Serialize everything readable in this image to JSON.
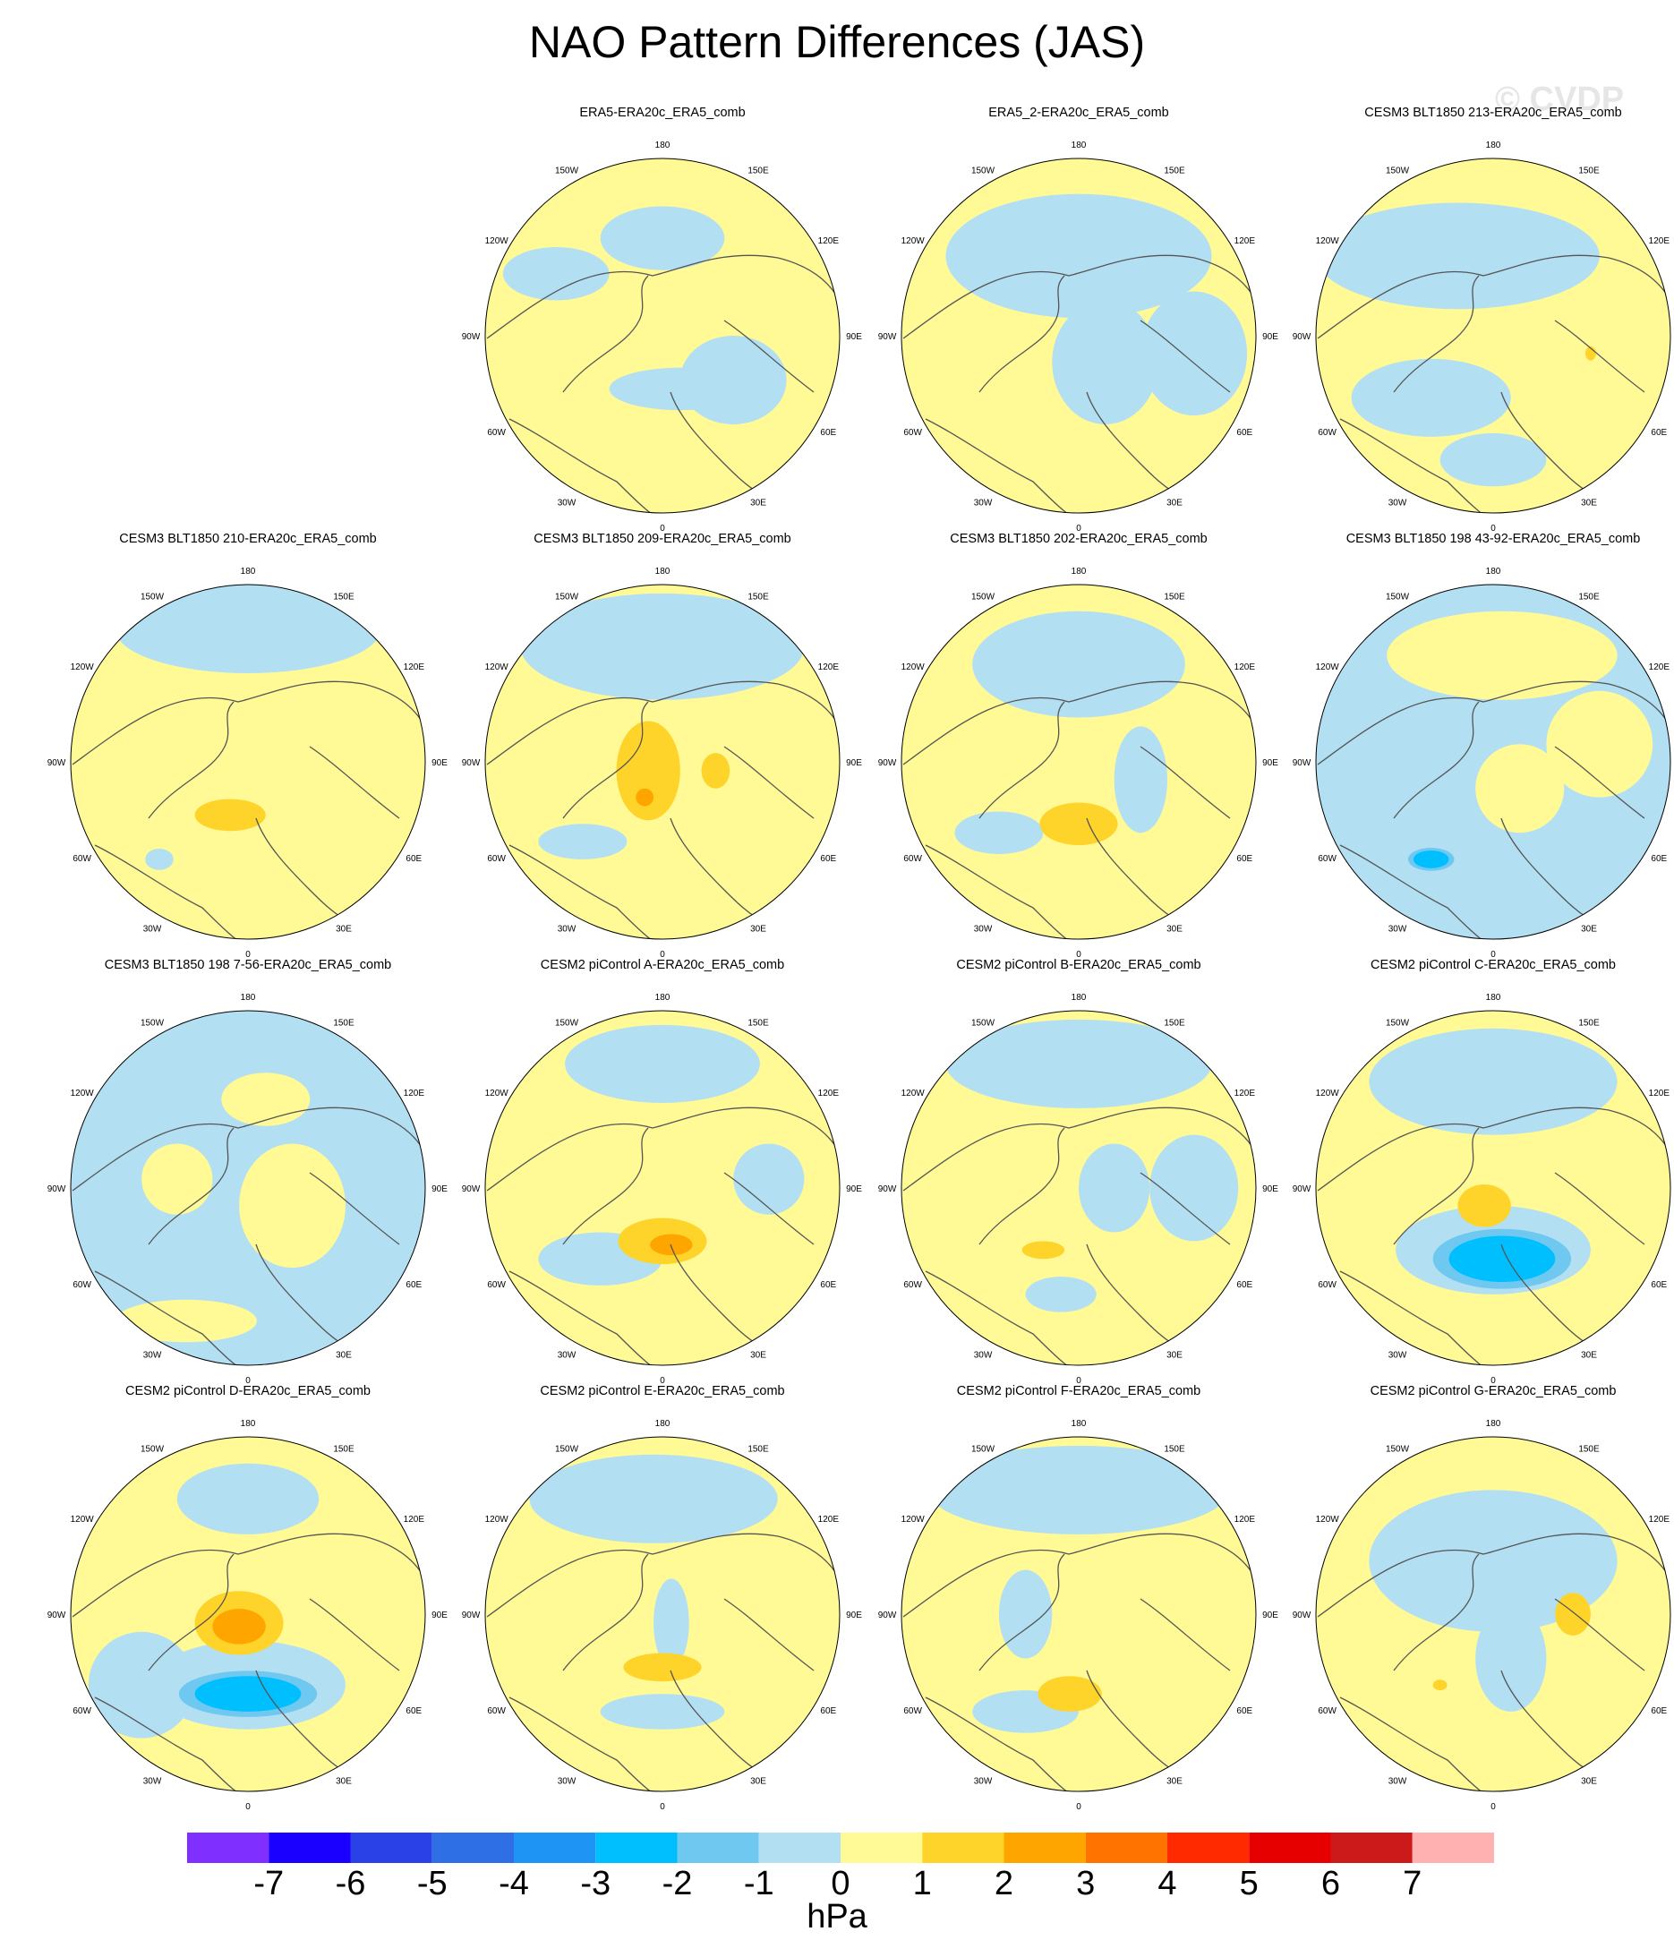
{
  "figure": {
    "title": "NAO Pattern Differences (JAS)",
    "watermark": "© CVDP",
    "units": "hPa",
    "longitude_labels": [
      "180",
      "150E",
      "120E",
      "90E",
      "60E",
      "30E",
      "0",
      "30W",
      "60W",
      "90W",
      "120W",
      "150W"
    ]
  },
  "colors": {
    "levels": [
      -7,
      -6,
      -5,
      -4,
      -3,
      -2,
      -1,
      0,
      1,
      2,
      3,
      4,
      5,
      6,
      7
    ],
    "fills": [
      "#7f2fff",
      "#1a00ff",
      "#2a41e8",
      "#2f6fe6",
      "#1e95f5",
      "#00bfff",
      "#6ec8f0",
      "#b3dff2",
      "#fffa96",
      "#ffd42a",
      "#ffa500",
      "#ff7300",
      "#ff2a00",
      "#e60000",
      "#cc1a1a",
      "#ffb0b0"
    ],
    "coastline": "#555555",
    "circle_outline": "#000000"
  },
  "panels": [
    {
      "label": "ERA5-ERA20c_ERA5_comb",
      "blue_patches": [
        [
          0.0,
          -0.55,
          0.35,
          0.18
        ],
        [
          -0.6,
          -0.35,
          0.3,
          0.15
        ],
        [
          0.4,
          0.25,
          0.3,
          0.25
        ],
        [
          0.1,
          0.3,
          0.4,
          0.12
        ]
      ],
      "orange_patches": []
    },
    {
      "label": "ERA5_2-ERA20c_ERA5_comb",
      "blue_patches": [
        [
          0.0,
          -0.45,
          0.75,
          0.35
        ],
        [
          0.15,
          0.15,
          0.3,
          0.35
        ],
        [
          0.65,
          0.1,
          0.3,
          0.35
        ]
      ],
      "orange_patches": []
    },
    {
      "label": "CESM3 BLT1850 213-ERA20c_ERA5_comb",
      "blue_patches": [
        [
          -0.2,
          -0.45,
          0.8,
          0.3
        ],
        [
          -0.35,
          0.35,
          0.45,
          0.22
        ],
        [
          0.0,
          0.7,
          0.3,
          0.15
        ]
      ],
      "orange_patches": [
        [
          0.55,
          0.1,
          0.03,
          0.04,
          1
        ]
      ]
    },
    {
      "label": "CESM3 BLT1850 210-ERA20c_ERA5_comb",
      "blue_patches": [
        [
          0.0,
          -0.75,
          0.75,
          0.25
        ],
        [
          -0.5,
          0.55,
          0.08,
          0.06
        ]
      ],
      "orange_patches": [
        [
          -0.1,
          0.3,
          0.2,
          0.09,
          1
        ]
      ]
    },
    {
      "label": "CESM3 BLT1850 209-ERA20c_ERA5_comb",
      "blue_patches": [
        [
          0.0,
          -0.65,
          0.8,
          0.3
        ],
        [
          -0.45,
          0.45,
          0.25,
          0.1
        ]
      ],
      "orange_patches": [
        [
          -0.08,
          0.05,
          0.18,
          0.28,
          1
        ],
        [
          -0.1,
          0.2,
          0.05,
          0.05,
          2
        ],
        [
          0.3,
          0.05,
          0.08,
          0.1,
          1
        ]
      ]
    },
    {
      "label": "CESM3 BLT1850 202-ERA20c_ERA5_comb",
      "blue_patches": [
        [
          0.0,
          -0.55,
          0.6,
          0.3
        ],
        [
          -0.45,
          0.4,
          0.25,
          0.12
        ],
        [
          0.35,
          0.1,
          0.15,
          0.3
        ]
      ],
      "orange_patches": [
        [
          0.0,
          0.35,
          0.22,
          0.12,
          1
        ]
      ]
    },
    {
      "label": "CESM3 BLT1850 198 43-92-ERA20c_ERA5_comb",
      "blue_patches": [
        [
          0.0,
          0.0,
          0.95,
          0.95
        ]
      ],
      "yellow_patches": [
        [
          0.05,
          -0.6,
          0.65,
          0.25
        ],
        [
          0.15,
          0.15,
          0.25,
          0.25
        ],
        [
          0.6,
          -0.1,
          0.3,
          0.3
        ]
      ],
      "orange_patches": [],
      "dark_blue_patches": [
        [
          -0.35,
          0.55,
          0.1,
          0.05
        ]
      ]
    },
    {
      "label": "CESM3 BLT1850 198 7-56-ERA20c_ERA5_comb",
      "blue_patches": [
        [
          0.0,
          0.0,
          0.95,
          0.95
        ]
      ],
      "yellow_patches": [
        [
          0.1,
          -0.5,
          0.25,
          0.15
        ],
        [
          -0.4,
          -0.05,
          0.2,
          0.2
        ],
        [
          0.25,
          0.1,
          0.3,
          0.35
        ],
        [
          -0.35,
          0.75,
          0.4,
          0.12
        ]
      ],
      "orange_patches": []
    },
    {
      "label": "CESM2 piControl A-ERA20c_ERA5_comb",
      "blue_patches": [
        [
          0.0,
          -0.7,
          0.55,
          0.22
        ],
        [
          -0.35,
          0.4,
          0.35,
          0.15
        ],
        [
          0.6,
          -0.05,
          0.2,
          0.2
        ]
      ],
      "orange_patches": [
        [
          0.0,
          0.3,
          0.25,
          0.13,
          1
        ],
        [
          0.05,
          0.32,
          0.12,
          0.06,
          2
        ]
      ]
    },
    {
      "label": "CESM2 piControl B-ERA20c_ERA5_comb",
      "blue_patches": [
        [
          0.0,
          -0.7,
          0.75,
          0.25
        ],
        [
          0.2,
          0.0,
          0.2,
          0.25
        ],
        [
          0.65,
          0.0,
          0.25,
          0.3
        ],
        [
          -0.1,
          0.6,
          0.2,
          0.1
        ]
      ],
      "orange_patches": [
        [
          -0.2,
          0.35,
          0.12,
          0.05,
          1
        ]
      ]
    },
    {
      "label": "CESM2 piControl C-ERA20c_ERA5_comb",
      "blue_patches": [
        [
          0.0,
          -0.6,
          0.7,
          0.3
        ],
        [
          0.0,
          0.35,
          0.55,
          0.25
        ]
      ],
      "orange_patches": [
        [
          -0.05,
          0.1,
          0.15,
          0.12,
          1
        ]
      ],
      "dark_blue_patches": [
        [
          0.05,
          0.4,
          0.3,
          0.13
        ]
      ]
    },
    {
      "label": "CESM2 piControl D-ERA20c_ERA5_comb",
      "blue_patches": [
        [
          0.0,
          -0.65,
          0.4,
          0.2
        ],
        [
          -0.6,
          0.4,
          0.3,
          0.3
        ],
        [
          0.0,
          0.4,
          0.55,
          0.25
        ]
      ],
      "orange_patches": [
        [
          -0.05,
          0.05,
          0.25,
          0.18,
          1
        ],
        [
          -0.05,
          0.07,
          0.15,
          0.1,
          2
        ]
      ],
      "dark_blue_patches": [
        [
          0.0,
          0.45,
          0.3,
          0.1
        ]
      ]
    },
    {
      "label": "CESM2 piControl E-ERA20c_ERA5_comb",
      "blue_patches": [
        [
          -0.05,
          -0.65,
          0.7,
          0.25
        ],
        [
          0.0,
          0.55,
          0.35,
          0.1
        ],
        [
          0.05,
          0.05,
          0.1,
          0.25
        ]
      ],
      "orange_patches": [
        [
          0.0,
          0.3,
          0.22,
          0.08,
          1
        ]
      ]
    },
    {
      "label": "CESM2 piControl F-ERA20c_ERA5_comb",
      "blue_patches": [
        [
          0.0,
          -0.7,
          0.85,
          0.25
        ],
        [
          -0.3,
          0.0,
          0.15,
          0.25
        ],
        [
          -0.3,
          0.55,
          0.3,
          0.12
        ]
      ],
      "orange_patches": [
        [
          -0.05,
          0.45,
          0.18,
          0.1,
          1
        ]
      ]
    },
    {
      "label": "CESM2 piControl G-ERA20c_ERA5_comb",
      "blue_patches": [
        [
          0.0,
          -0.3,
          0.7,
          0.4
        ],
        [
          0.1,
          0.25,
          0.2,
          0.3
        ]
      ],
      "orange_patches": [
        [
          0.45,
          0.0,
          0.1,
          0.12,
          1
        ],
        [
          -0.3,
          0.4,
          0.04,
          0.03,
          1
        ]
      ]
    }
  ]
}
